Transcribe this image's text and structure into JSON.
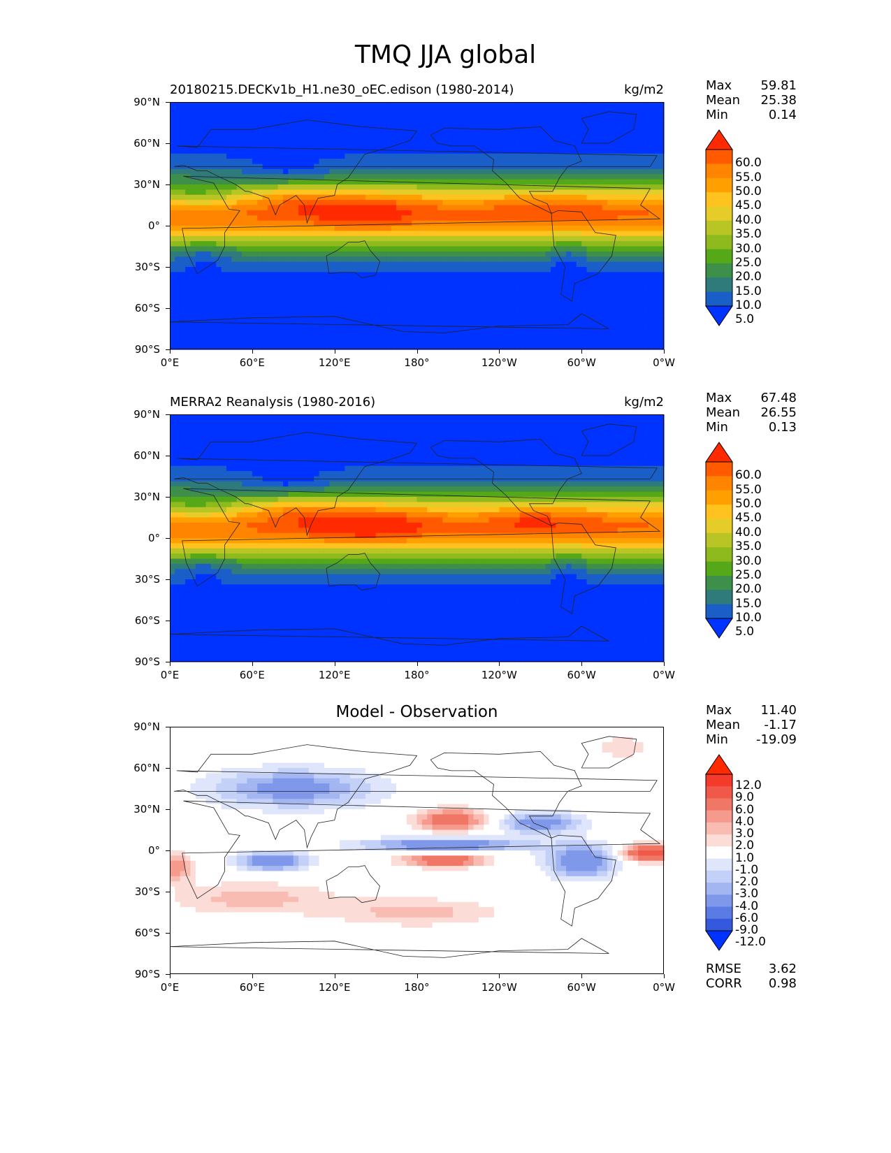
{
  "figure": {
    "title": "TMQ JJA global"
  },
  "panels": [
    {
      "id": "model",
      "title_left": "20180215.DECKv1b_H1.ne30_oEC.edison (1980-2014)",
      "title_right": "kg/m2",
      "stats": {
        "max_label": "Max",
        "max": "59.81",
        "mean_label": "Mean",
        "mean": "25.38",
        "min_label": "Min",
        "min": "0.14"
      },
      "colorbar": {
        "levels": [
          "60.0",
          "55.0",
          "50.0",
          "45.0",
          "40.0",
          "35.0",
          "30.0",
          "25.0",
          "20.0",
          "15.0",
          "10.0",
          "5.0"
        ],
        "colors": [
          "#ff2a00",
          "#ff5a00",
          "#ff8400",
          "#ffa000",
          "#ffc21f",
          "#e6cc28",
          "#b9c425",
          "#8fba1e",
          "#55a818",
          "#3d8f4a",
          "#2f7a7a",
          "#1a5fc8",
          "#0033ff"
        ]
      }
    },
    {
      "id": "obs",
      "title_left": "MERRA2 Reanalysis (1980-2016)",
      "title_right": "kg/m2",
      "stats": {
        "max_label": "Max",
        "max": "67.48",
        "mean_label": "Mean",
        "mean": "26.55",
        "min_label": "Min",
        "min": "0.13"
      },
      "colorbar": {
        "levels": [
          "60.0",
          "55.0",
          "50.0",
          "45.0",
          "40.0",
          "35.0",
          "30.0",
          "25.0",
          "20.0",
          "15.0",
          "10.0",
          "5.0"
        ],
        "colors": [
          "#ff2a00",
          "#ff5a00",
          "#ff8400",
          "#ffa000",
          "#ffc21f",
          "#e6cc28",
          "#b9c425",
          "#8fba1e",
          "#55a818",
          "#3d8f4a",
          "#2f7a7a",
          "#1a5fc8",
          "#0033ff"
        ]
      }
    },
    {
      "id": "diff",
      "title_center": "Model - Observation",
      "stats": {
        "max_label": "Max",
        "max": "11.40",
        "mean_label": "Mean",
        "mean": "-1.17",
        "min_label": "Min",
        "min": "-19.09"
      },
      "extra_stats": {
        "rmse_label": "RMSE",
        "rmse": "3.62",
        "corr_label": "CORR",
        "corr": "0.98"
      },
      "colorbar": {
        "levels": [
          "12.0",
          "9.0",
          "6.0",
          "4.0",
          "3.0",
          "2.0",
          "1.0",
          "-1.0",
          "-2.0",
          "-3.0",
          "-4.0",
          "-6.0",
          "-9.0",
          "-12.0"
        ],
        "colors": [
          "#ff2a00",
          "#f43a2a",
          "#f0584a",
          "#f07766",
          "#f59a8c",
          "#f9bcb2",
          "#fcdcd6",
          "#ffffff",
          "#dfe6fb",
          "#c3d0f7",
          "#a3b6f1",
          "#7f98ea",
          "#5a7ae4",
          "#3459df",
          "#0033ff"
        ]
      }
    }
  ],
  "axes": {
    "yticks": [
      "90°N",
      "60°N",
      "30°N",
      "0°",
      "30°S",
      "60°S",
      "90°S"
    ],
    "xticks": [
      "0°E",
      "60°E",
      "120°E",
      "180°",
      "120°W",
      "60°W",
      "0°W"
    ]
  }
}
